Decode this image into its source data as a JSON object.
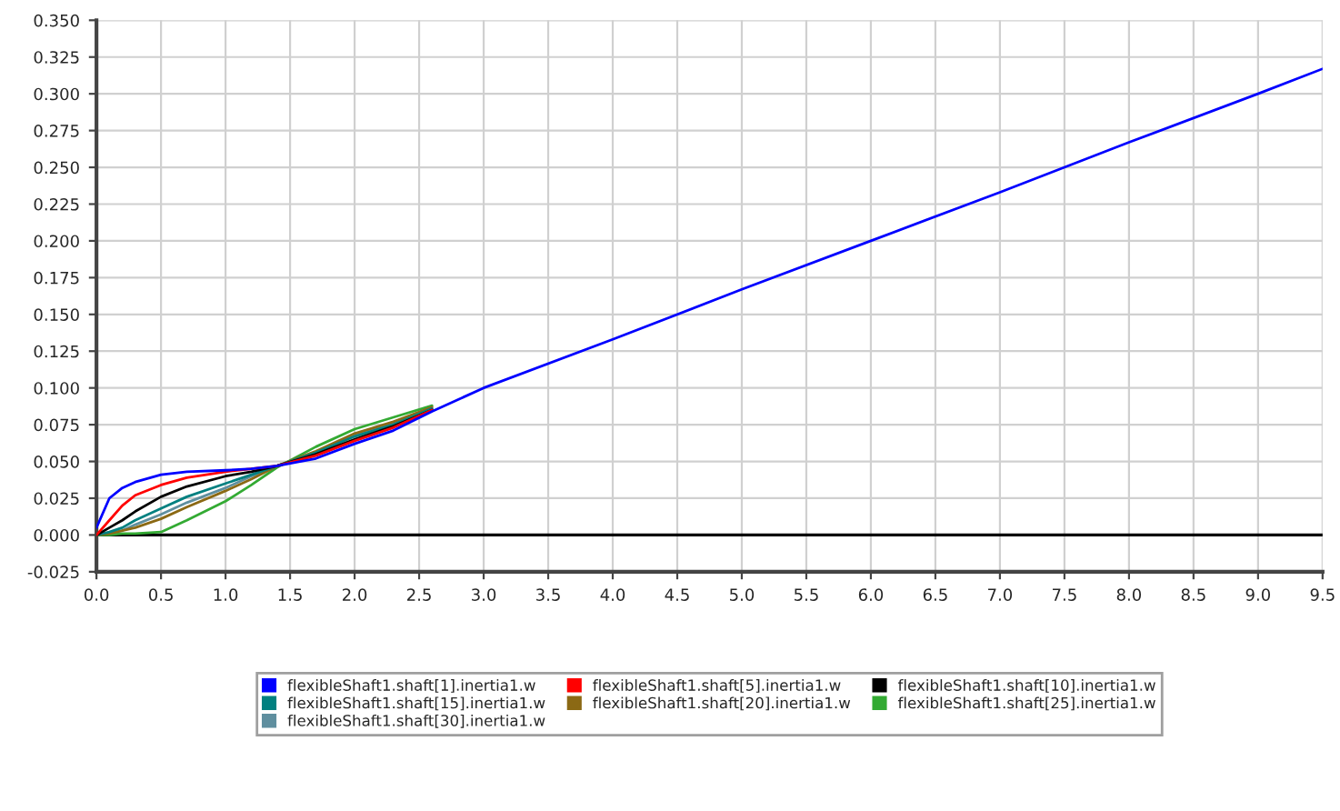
{
  "chart_data": {
    "type": "line",
    "x": [
      0,
      0.1,
      0.2,
      0.3,
      0.5,
      0.7,
      1.0,
      1.2,
      1.4,
      1.7,
      2.0,
      2.3,
      2.6,
      3,
      4,
      5,
      6,
      7,
      8,
      9,
      9.5
    ],
    "series": [
      {
        "name": "flexibleShaft1.shaft[1].inertia1.w",
        "color": "#0000ff",
        "values": [
          0.005,
          0.025,
          0.032,
          0.036,
          0.041,
          0.043,
          0.044,
          0.045,
          0.047,
          0.052,
          0.062,
          0.071,
          0.084,
          0.1,
          0.133,
          0.167,
          0.2,
          0.233,
          0.267,
          0.3,
          0.317
        ]
      },
      {
        "name": "flexibleShaft1.shaft[5].inertia1.w",
        "color": "#ff0000",
        "values": [
          0.0,
          0.01,
          0.02,
          0.027,
          0.034,
          0.039,
          0.043,
          0.045,
          0.047,
          0.054,
          0.064,
          0.073,
          0.085,
          null,
          null,
          null,
          null,
          null,
          null,
          null,
          null
        ]
      },
      {
        "name": "flexibleShaft1.shaft[10].inertia1.w",
        "color": "#000000",
        "values": [
          0.0,
          0.005,
          0.01,
          0.016,
          0.026,
          0.033,
          0.04,
          0.043,
          0.047,
          0.055,
          0.065,
          0.074,
          0.085,
          null,
          null,
          null,
          null,
          null,
          null,
          null,
          null
        ]
      },
      {
        "name": "flexibleShaft1.shaft[15].inertia1.w",
        "color": "#008080",
        "values": [
          0.0,
          0.002,
          0.005,
          0.01,
          0.018,
          0.026,
          0.035,
          0.041,
          0.047,
          0.056,
          0.067,
          0.075,
          0.086,
          null,
          null,
          null,
          null,
          null,
          null,
          null,
          null
        ]
      },
      {
        "name": "flexibleShaft1.shaft[20].inertia1.w",
        "color": "#8b6914",
        "values": [
          0.0,
          0.001,
          0.003,
          0.005,
          0.011,
          0.019,
          0.03,
          0.038,
          0.047,
          0.057,
          0.069,
          0.077,
          0.087,
          null,
          null,
          null,
          null,
          null,
          null,
          null,
          null
        ]
      },
      {
        "name": "flexibleShaft1.shaft[25].inertia1.w",
        "color": "#33aa33",
        "values": [
          0.0,
          0.0,
          0.001,
          0.001,
          0.002,
          0.01,
          0.023,
          0.034,
          0.046,
          0.06,
          0.072,
          0.08,
          0.088,
          null,
          null,
          null,
          null,
          null,
          null,
          null,
          null
        ]
      },
      {
        "name": "flexibleShaft1.shaft[30].inertia1.w",
        "color": "#5f8f9f",
        "values": [
          0.0,
          0.001,
          0.003,
          0.007,
          0.014,
          0.022,
          0.032,
          0.04,
          0.047,
          0.056,
          0.068,
          0.076,
          0.086,
          null,
          null,
          null,
          null,
          null,
          null,
          null,
          null
        ]
      }
    ],
    "xlim": [
      0,
      9.5
    ],
    "xticks": [
      {
        "value": 0,
        "label": "0.0"
      },
      {
        "value": 0.5,
        "label": "0.5"
      },
      {
        "value": 1,
        "label": "1.0"
      },
      {
        "value": 1.5,
        "label": "1.5"
      },
      {
        "value": 2,
        "label": "2.0"
      },
      {
        "value": 2.5,
        "label": "2.5"
      },
      {
        "value": 3,
        "label": "3.0"
      },
      {
        "value": 3.5,
        "label": "3.5"
      },
      {
        "value": 4,
        "label": "4.0"
      },
      {
        "value": 4.5,
        "label": "4.5"
      },
      {
        "value": 5,
        "label": "5.0"
      },
      {
        "value": 5.5,
        "label": "5.5"
      },
      {
        "value": 6,
        "label": "6.0"
      },
      {
        "value": 6.5,
        "label": "6.5"
      },
      {
        "value": 7,
        "label": "7.0"
      },
      {
        "value": 7.5,
        "label": "7.5"
      },
      {
        "value": 8,
        "label": "8.0"
      },
      {
        "value": 8.5,
        "label": "8.5"
      },
      {
        "value": 9,
        "label": "9.0"
      },
      {
        "value": 9.5,
        "label": "9.5"
      }
    ],
    "ylim": [
      -0.025,
      0.35
    ],
    "yticks": [
      {
        "value": -0.025,
        "label": "-0.025"
      },
      {
        "value": 0,
        "label": "0.000"
      },
      {
        "value": 0.025,
        "label": "0.025"
      },
      {
        "value": 0.05,
        "label": "0.050"
      },
      {
        "value": 0.075,
        "label": "0.075"
      },
      {
        "value": 0.1,
        "label": "0.100"
      },
      {
        "value": 0.125,
        "label": "0.125"
      },
      {
        "value": 0.15,
        "label": "0.150"
      },
      {
        "value": 0.175,
        "label": "0.175"
      },
      {
        "value": 0.2,
        "label": "0.200"
      },
      {
        "value": 0.225,
        "label": "0.225"
      },
      {
        "value": 0.25,
        "label": "0.250"
      },
      {
        "value": 0.275,
        "label": "0.275"
      },
      {
        "value": 0.3,
        "label": "0.300"
      },
      {
        "value": 0.325,
        "label": "0.325"
      },
      {
        "value": 0.35,
        "label": "0.350"
      }
    ],
    "ref_lines": [
      {
        "axis": "y",
        "value": 0,
        "color": "#000000"
      }
    ],
    "grid": true,
    "legend": "bottom"
  }
}
